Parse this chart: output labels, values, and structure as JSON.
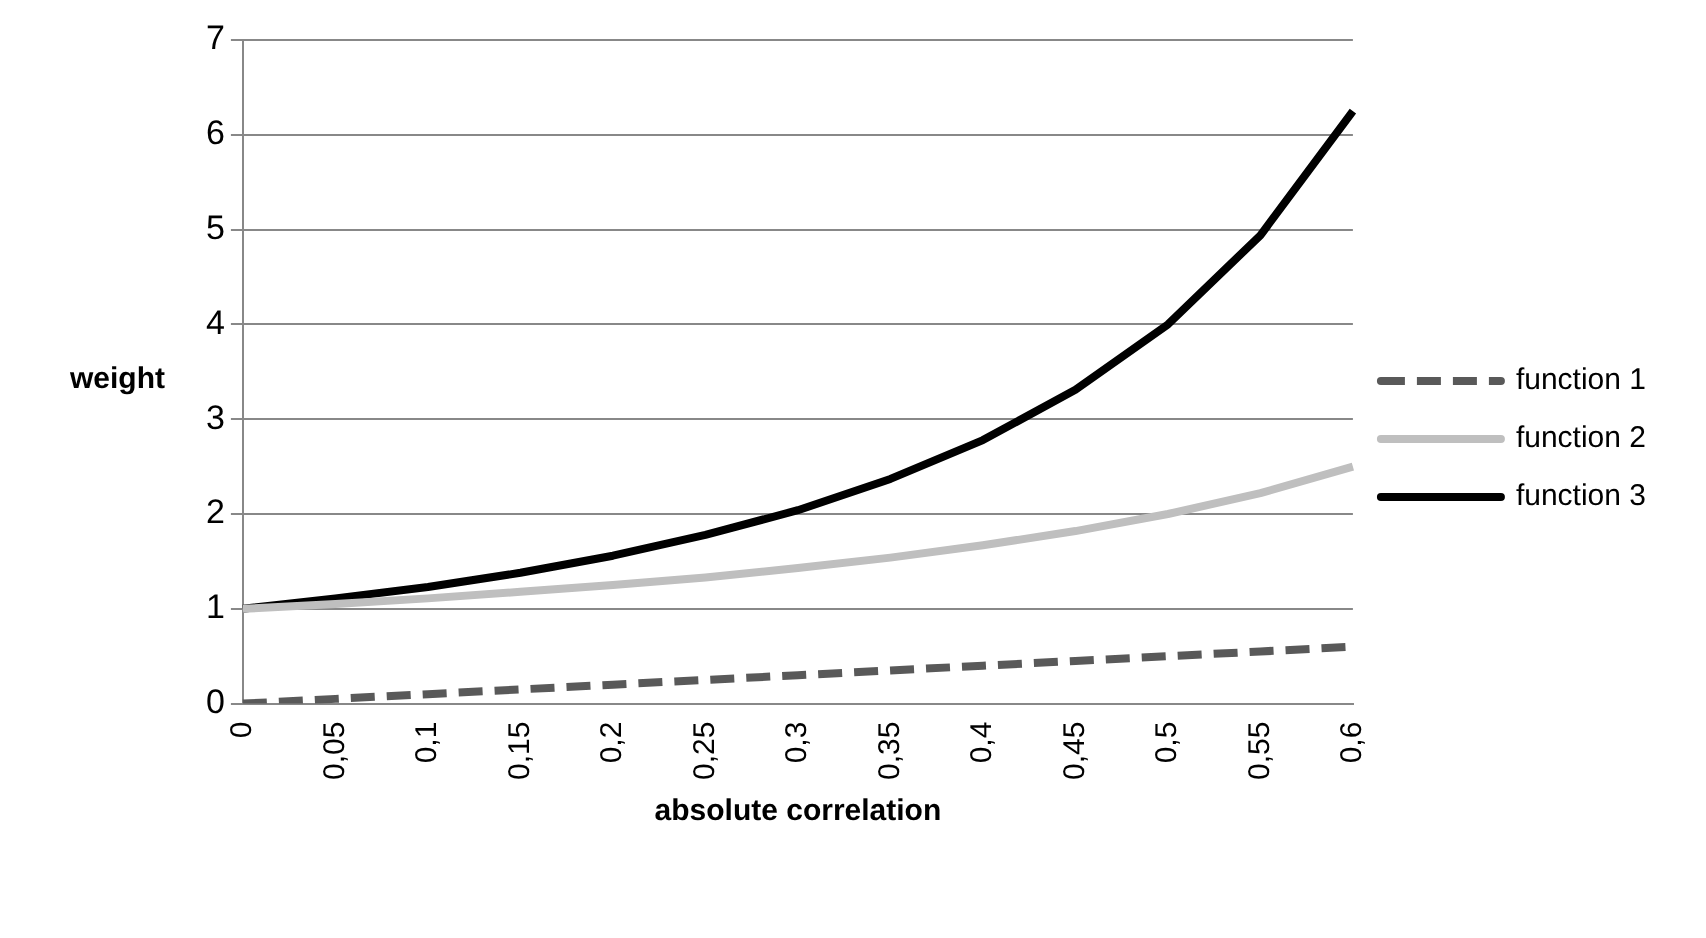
{
  "chart_data": {
    "type": "line",
    "xlabel": "absolute correlation",
    "ylabel": "weight",
    "categories": [
      "0",
      "0,05",
      "0,1",
      "0,15",
      "0,2",
      "0,25",
      "0,3",
      "0,35",
      "0,4",
      "0,45",
      "0,5",
      "0,55",
      "0,6"
    ],
    "series": [
      {
        "name": "function 1",
        "color": "#595959",
        "line_style": "dashed",
        "values": [
          0,
          0.05,
          0.1,
          0.15,
          0.2,
          0.25,
          0.3,
          0.35,
          0.4,
          0.45,
          0.5,
          0.55,
          0.6
        ]
      },
      {
        "name": "function 2",
        "color": "#bfbfbf",
        "line_style": "solid",
        "values": [
          1,
          1.05,
          1.11,
          1.18,
          1.25,
          1.33,
          1.43,
          1.54,
          1.67,
          1.82,
          2,
          2.22,
          2.5
        ]
      },
      {
        "name": "function 3",
        "color": "#000000",
        "line_style": "solid",
        "values": [
          1,
          1.11,
          1.23,
          1.38,
          1.56,
          1.78,
          2.04,
          2.37,
          2.78,
          3.31,
          4,
          4.94,
          6.25
        ]
      }
    ],
    "ylim": [
      0,
      7
    ],
    "yticks": [
      0,
      1,
      2,
      3,
      4,
      5,
      6,
      7
    ],
    "grid": "y",
    "legend": "right",
    "marker": "none"
  }
}
